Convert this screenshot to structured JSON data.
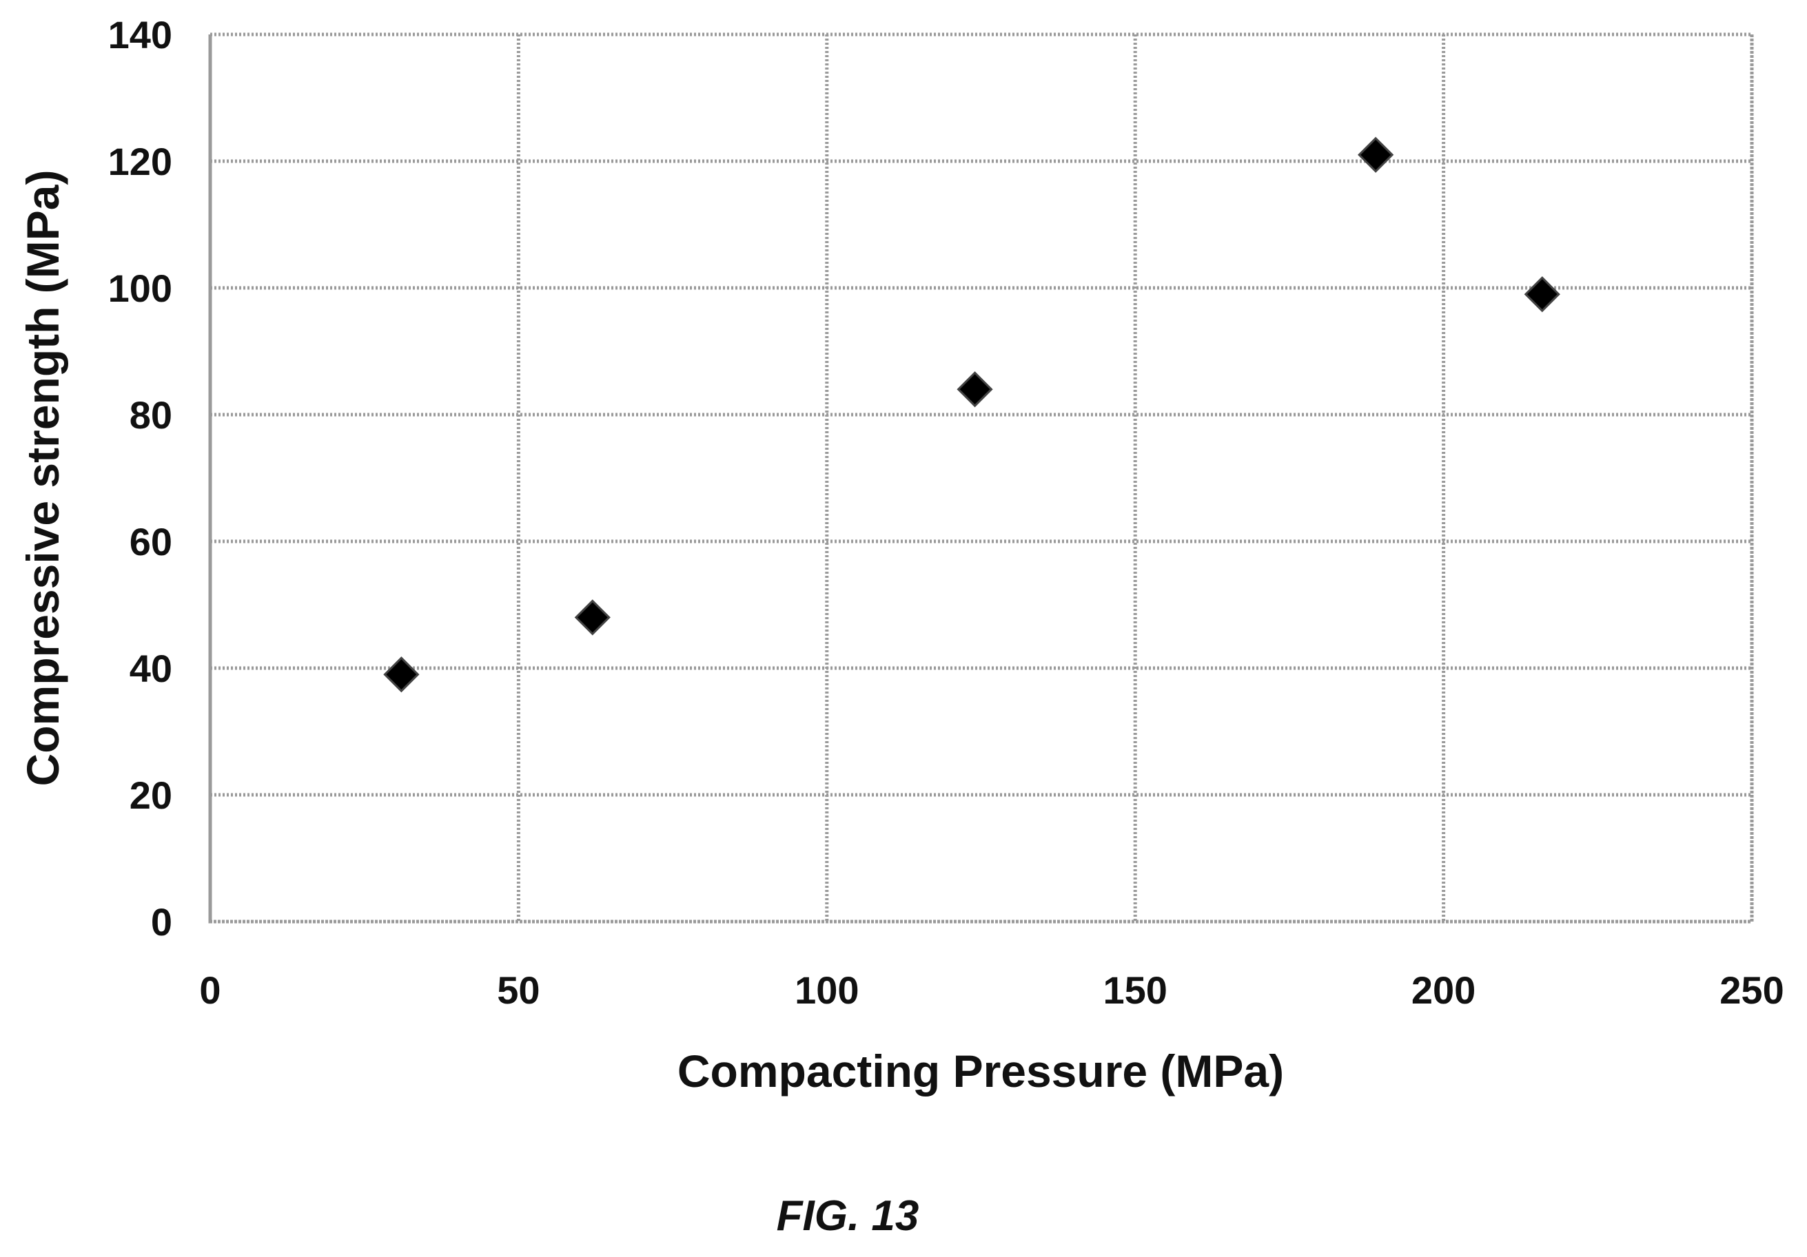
{
  "chart_data": {
    "type": "scatter",
    "title": "",
    "xlabel": "Compacting Pressure (MPa)",
    "ylabel": "Compressive strength (MPa)",
    "xlim": [
      0,
      250
    ],
    "ylim": [
      0,
      140
    ],
    "x_ticks": [
      "0",
      "50",
      "100",
      "150",
      "200",
      "250"
    ],
    "y_ticks": [
      "0",
      "20",
      "40",
      "60",
      "80",
      "100",
      "120",
      "140"
    ],
    "grid": true,
    "legend": "none",
    "marker": "diamond",
    "marker_color": "#000000",
    "series": [
      {
        "x": [
          31,
          62,
          124,
          189,
          216
        ],
        "y": [
          39,
          48,
          84,
          121,
          99
        ]
      }
    ]
  },
  "caption": "FIG. 13"
}
